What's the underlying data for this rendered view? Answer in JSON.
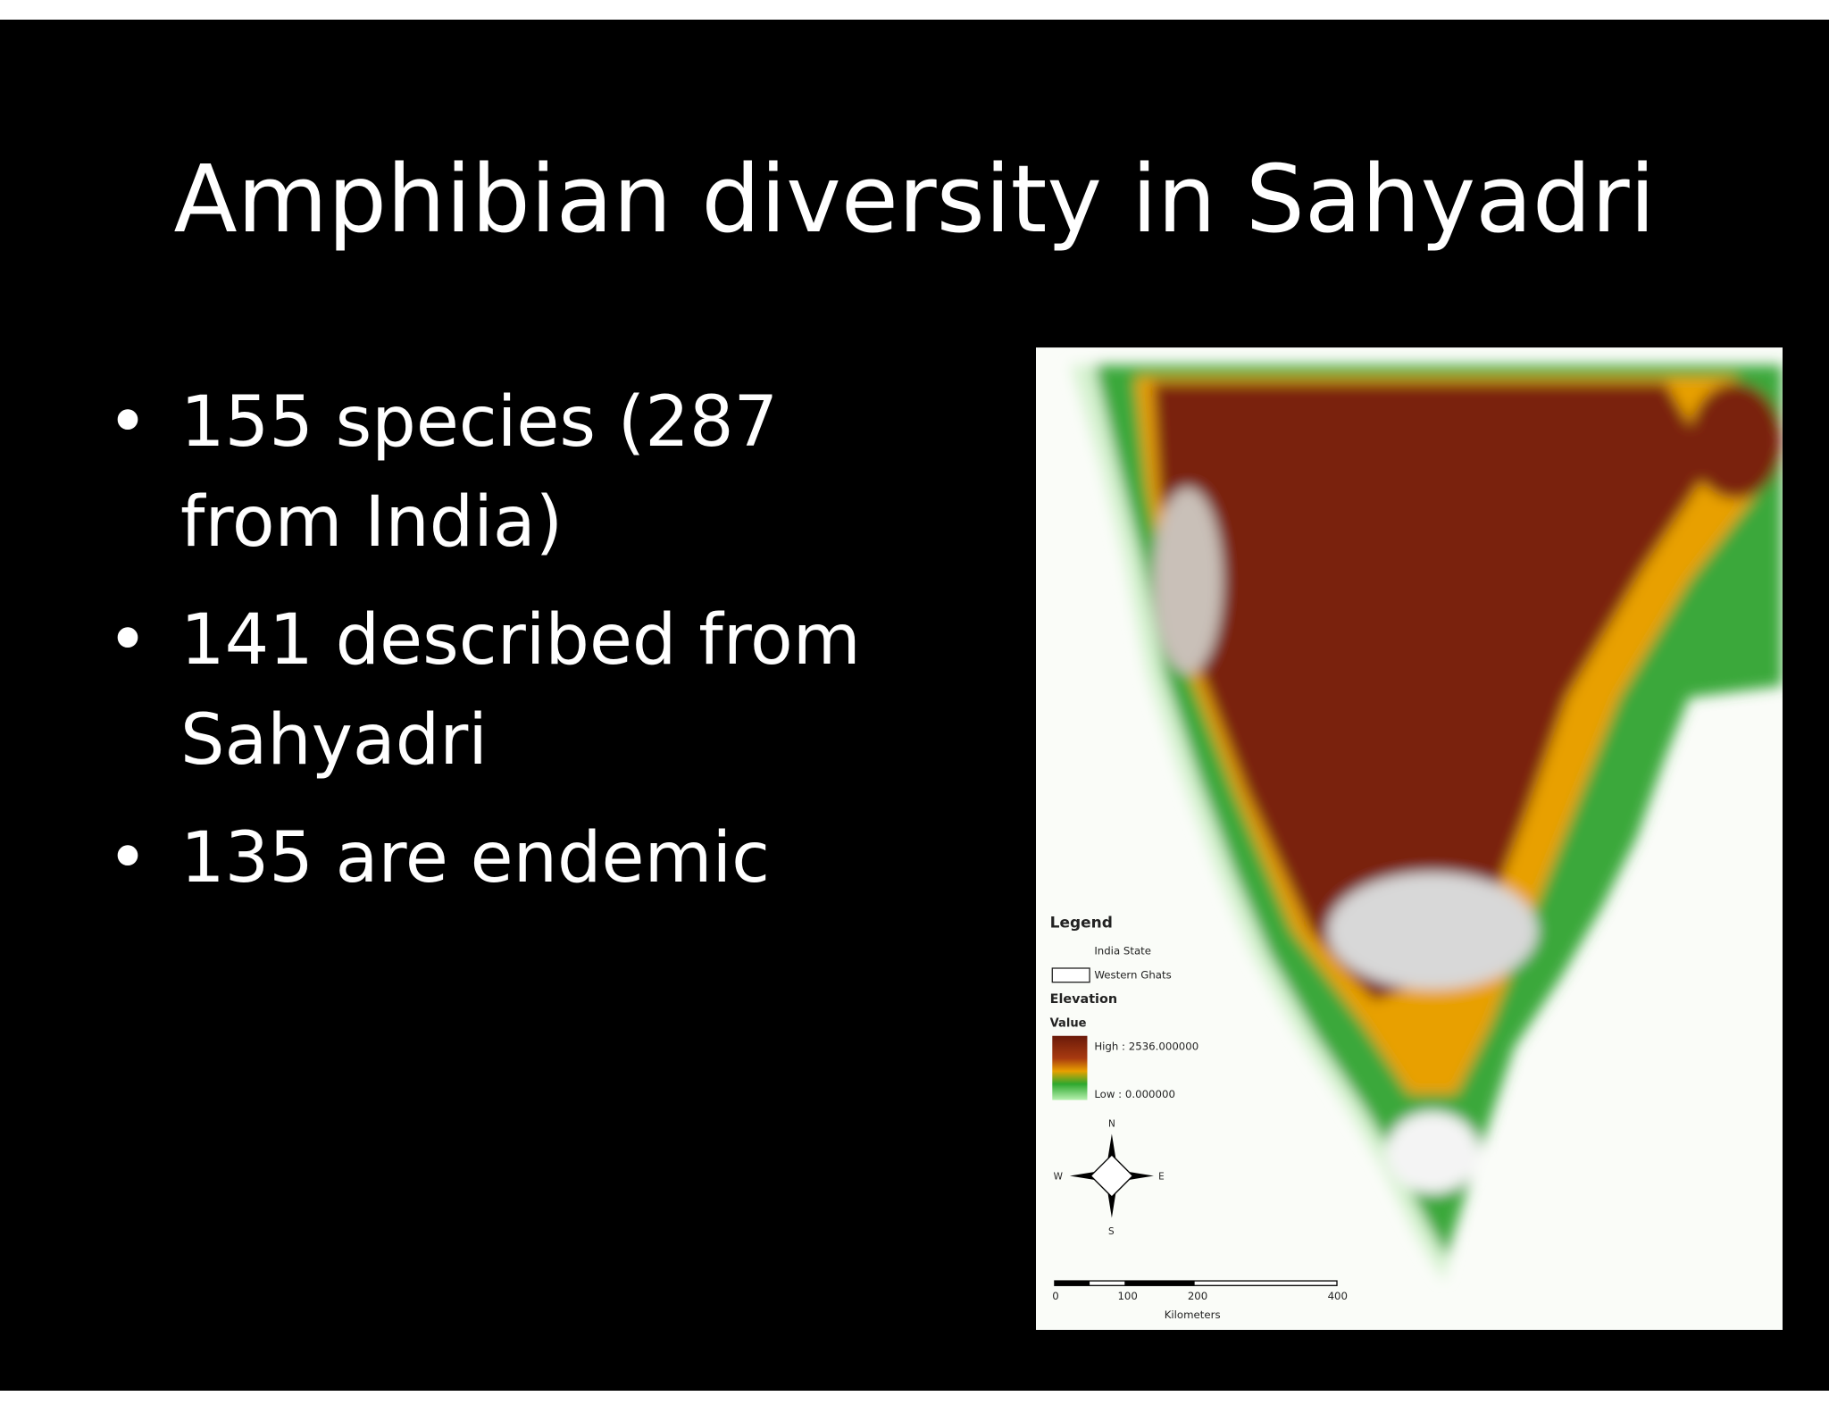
{
  "slide": {
    "title": "Amphibian diversity in Sahyadri",
    "bullets": [
      "155 species (287 from India)",
      "141 described from Sahyadri",
      "135 are endemic"
    ],
    "map": {
      "legend_title": "Legend",
      "india_state": "India State",
      "western_ghats": "Western Ghats",
      "elevation": "Elevation",
      "value": "Value",
      "high": "High : 2536.000000",
      "low": "Low : 0.000000",
      "compass": {
        "n": "N",
        "s": "S",
        "e": "E",
        "w": "W"
      },
      "scale": [
        "0",
        "100",
        "200",
        "400"
      ],
      "scale_unit": "Kilometers"
    }
  }
}
